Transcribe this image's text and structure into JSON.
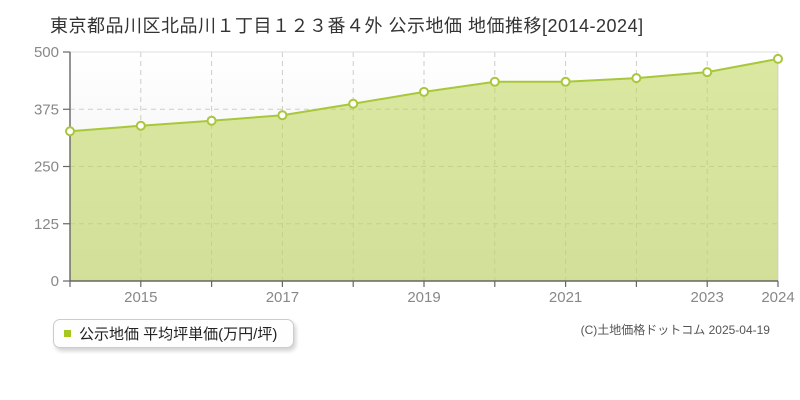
{
  "page": {
    "title": "東京都品川区北品川１丁目１２３番４外 公示地価 地価推移[2014-2024]",
    "copyright": "(C)土地価格ドットコム 2025-04-19"
  },
  "legend": {
    "label": "公示地価 平均坪単価(万円/坪)",
    "swatch_color": "#a6c71e"
  },
  "chart_data": {
    "type": "area",
    "title": "東京都品川区北品川１丁目１２３番４外 公示地価 地価推移[2014-2024]",
    "categories": [
      "2014",
      "2015",
      "2016",
      "2017",
      "2018",
      "2019",
      "2020",
      "2021",
      "2022",
      "2023",
      "2024"
    ],
    "series": [
      {
        "name": "公示地価 平均坪単価(万円/坪)",
        "values": [
          327,
          339,
          350,
          362,
          387,
          413,
          435,
          435,
          443,
          456,
          485
        ]
      }
    ],
    "xlabel": "",
    "ylabel": "",
    "ylim": [
      0,
      500
    ],
    "yticks": [
      0,
      125,
      250,
      375,
      500
    ],
    "xticks_visible": [
      "2015",
      "2017",
      "2019",
      "2021",
      "2023",
      "2024"
    ],
    "grid": true,
    "legend_position": "bottom-left",
    "colors": {
      "line": "#a8c73a",
      "fill": "rgba(187, 213, 85, 0.55)",
      "marker_fill": "#ffffff",
      "marker_stroke": "#a8c73a",
      "grid": "#cccccc",
      "border": "#dcdcdc",
      "axis": "#666666",
      "tick_label": "#888888",
      "plot_bg_top": "#ffffff",
      "plot_bg_bottom": "#ececec"
    }
  }
}
